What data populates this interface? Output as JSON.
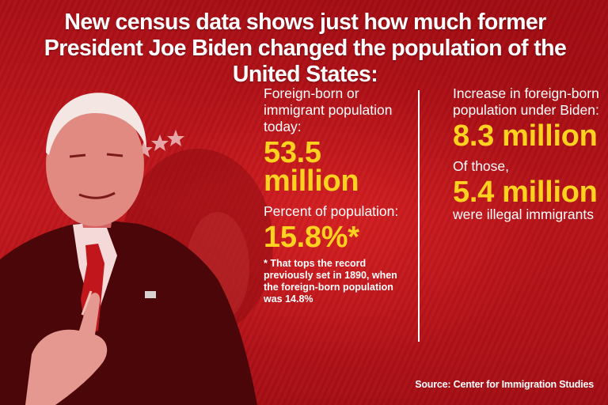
{
  "headline": "New census data shows just how much former President Joe Biden changed the population of the United States:",
  "left_column": {
    "stat1_label": "Foreign-born or immigrant population today:",
    "stat1_value": "53.5 million",
    "stat2_label": "Percent of population:",
    "stat2_value": "15.8%*",
    "footnote": "* That tops the record previously set in 1890, when the foreign-born population was 14.8%"
  },
  "right_column": {
    "stat1_label": "Increase in foreign-born population under Biden:",
    "stat1_value": "8.3 million",
    "stat2_label": "Of those,",
    "stat2_value": "5.4 million",
    "stat2_suffix": "were illegal immigrants"
  },
  "source": "Source: Center for Immigration Studies",
  "colors": {
    "background": "#b8141a",
    "accent": "#ffd21f",
    "text": "#ffffff"
  }
}
